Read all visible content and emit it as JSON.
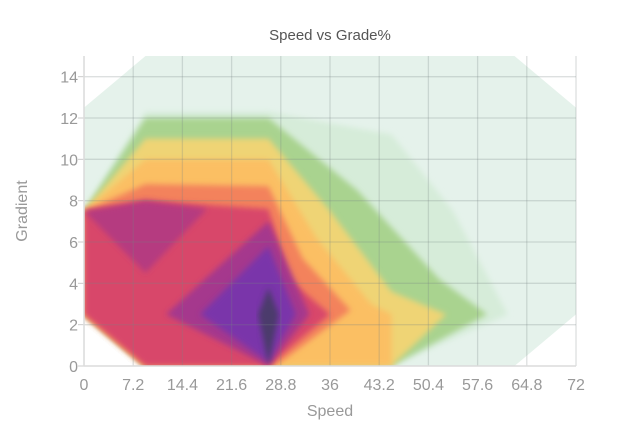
{
  "chart_data": {
    "type": "contour",
    "title": "Speed vs Grade%",
    "xlabel": "Speed",
    "ylabel": "Gradient",
    "xlim": [
      0,
      72
    ],
    "ylim": [
      0,
      15
    ],
    "xticks": [
      "0",
      "7.2",
      "14.4",
      "21.6",
      "28.8",
      "36",
      "43.2",
      "50.4",
      "57.6",
      "64.8",
      "72"
    ],
    "yticks": [
      "0",
      "2",
      "4",
      "6",
      "8",
      "10",
      "12",
      "14"
    ],
    "grid": true,
    "levels": [
      {
        "color": "#e5f2eb",
        "points": [
          [
            0,
            12.5
          ],
          [
            9,
            15
          ],
          [
            63,
            15
          ],
          [
            72,
            12.5
          ],
          [
            72,
            2.5
          ],
          [
            63,
            0
          ],
          [
            9,
            0
          ],
          [
            0,
            2.5
          ]
        ]
      },
      {
        "color": "#d6ecd9",
        "points": [
          [
            0,
            7.5
          ],
          [
            9,
            12.3
          ],
          [
            27,
            12.3
          ],
          [
            45,
            11.2
          ],
          [
            54,
            7.5
          ],
          [
            62,
            2.5
          ],
          [
            45,
            0
          ],
          [
            9,
            0
          ],
          [
            0,
            2.5
          ]
        ]
      },
      {
        "color": "#a9d38f",
        "points": [
          [
            0,
            7.5
          ],
          [
            9,
            12
          ],
          [
            27,
            12
          ],
          [
            40,
            8.5
          ],
          [
            52,
            4.2
          ],
          [
            59,
            2.5
          ],
          [
            45,
            0
          ],
          [
            9,
            0
          ],
          [
            0,
            2.5
          ]
        ]
      },
      {
        "color": "#efd474",
        "points": [
          [
            0,
            7.5
          ],
          [
            9,
            11
          ],
          [
            27,
            11
          ],
          [
            36,
            7.5
          ],
          [
            45,
            3.6
          ],
          [
            53,
            2.5
          ],
          [
            45,
            0
          ],
          [
            9,
            0
          ],
          [
            0,
            2.5
          ]
        ]
      },
      {
        "color": "#fbbf64",
        "points": [
          [
            0,
            7.5
          ],
          [
            9,
            10
          ],
          [
            27,
            10
          ],
          [
            34,
            6.2
          ],
          [
            42,
            3
          ],
          [
            45,
            2.5
          ],
          [
            45,
            0
          ],
          [
            9,
            0
          ],
          [
            0,
            2.5
          ]
        ]
      },
      {
        "color": "#f3825b",
        "points": [
          [
            0,
            7.5
          ],
          [
            9,
            8.8
          ],
          [
            27,
            8.7
          ],
          [
            32,
            5.2
          ],
          [
            39,
            2.7
          ],
          [
            28,
            0
          ],
          [
            9,
            0
          ],
          [
            0,
            2.5
          ]
        ]
      },
      {
        "color": "#d8476a",
        "points": [
          [
            0,
            7.5
          ],
          [
            9,
            8
          ],
          [
            27,
            7.6
          ],
          [
            30,
            4.2
          ],
          [
            36,
            2.5
          ],
          [
            27,
            0
          ],
          [
            9,
            0
          ],
          [
            0,
            2.5
          ]
        ]
      },
      {
        "color": "#b53a80",
        "points": [
          [
            0,
            7.5
          ],
          [
            9,
            8
          ],
          [
            18,
            7.6
          ],
          [
            9,
            4.5
          ]
        ]
      },
      {
        "color": "#a5378d",
        "points": [
          [
            27,
            7
          ],
          [
            33,
            2.5
          ],
          [
            27,
            0
          ],
          [
            12,
            2.5
          ]
        ]
      },
      {
        "color": "#7a35aa",
        "points": [
          [
            27,
            5.8
          ],
          [
            31,
            2.5
          ],
          [
            27,
            0.2
          ],
          [
            17,
            2.5
          ]
        ]
      },
      {
        "color": "#4b3a6c",
        "points": [
          [
            27,
            3.8
          ],
          [
            28.5,
            2.5
          ],
          [
            27,
            0
          ],
          [
            25.5,
            2.5
          ]
        ]
      }
    ]
  }
}
